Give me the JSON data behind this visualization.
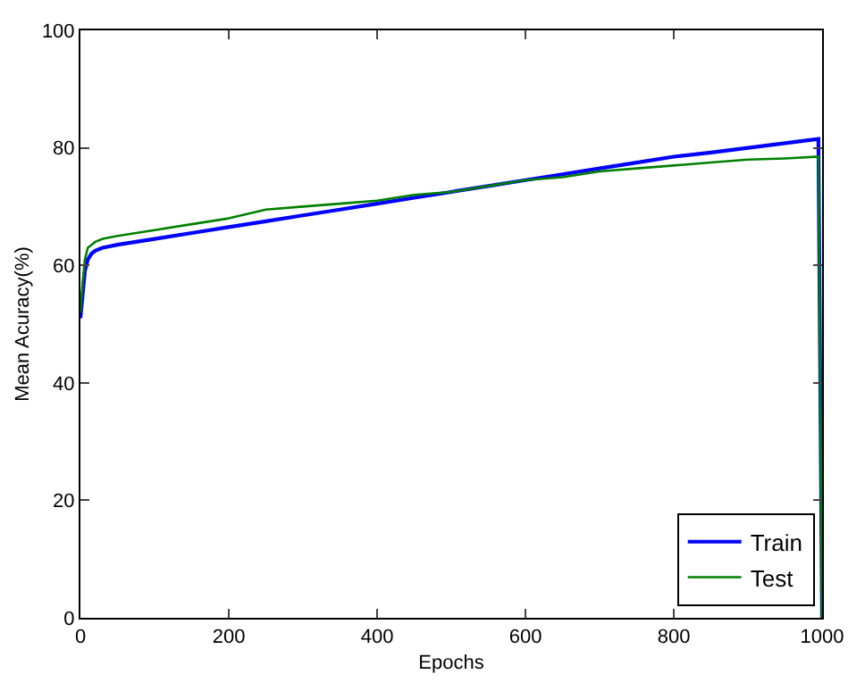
{
  "chart_data": {
    "type": "line",
    "xlabel": "Epochs",
    "ylabel": "Mean Acuracy(%)",
    "xlim": [
      0,
      1000
    ],
    "ylim": [
      0,
      100
    ],
    "xticks": [
      0,
      200,
      400,
      600,
      800,
      1000
    ],
    "yticks": [
      0,
      20,
      40,
      60,
      80,
      100
    ],
    "legend": "bottom right",
    "line_style": "solid",
    "marker": "none",
    "series": [
      {
        "name": "Train",
        "color": "#0000ff",
        "x": [
          0,
          3,
          6,
          10,
          15,
          20,
          30,
          50,
          75,
          100,
          150,
          200,
          250,
          300,
          350,
          400,
          450,
          500,
          550,
          600,
          650,
          700,
          750,
          800,
          850,
          900,
          950,
          995,
          1000
        ],
        "values": [
          51,
          55,
          59,
          61,
          62,
          62.5,
          63,
          63.5,
          64,
          64.5,
          65.5,
          66.5,
          67.5,
          68.5,
          69.5,
          70.5,
          71.5,
          72.5,
          73.5,
          74.5,
          75.5,
          76.5,
          77.5,
          78.5,
          79.2,
          80,
          80.8,
          81.5,
          0
        ]
      },
      {
        "name": "Test",
        "color": "#008000",
        "x": [
          0,
          3,
          6,
          10,
          15,
          20,
          30,
          50,
          75,
          100,
          150,
          200,
          250,
          300,
          350,
          400,
          450,
          500,
          550,
          600,
          650,
          700,
          750,
          800,
          850,
          900,
          950,
          995,
          1000
        ],
        "values": [
          52,
          57,
          61,
          63,
          63.5,
          64,
          64.5,
          65,
          65.5,
          66,
          67,
          68,
          69.5,
          70,
          70.5,
          71,
          72,
          72.5,
          73.5,
          74.5,
          75,
          76,
          76.5,
          77,
          77.5,
          78,
          78.2,
          78.5,
          0
        ]
      }
    ]
  }
}
